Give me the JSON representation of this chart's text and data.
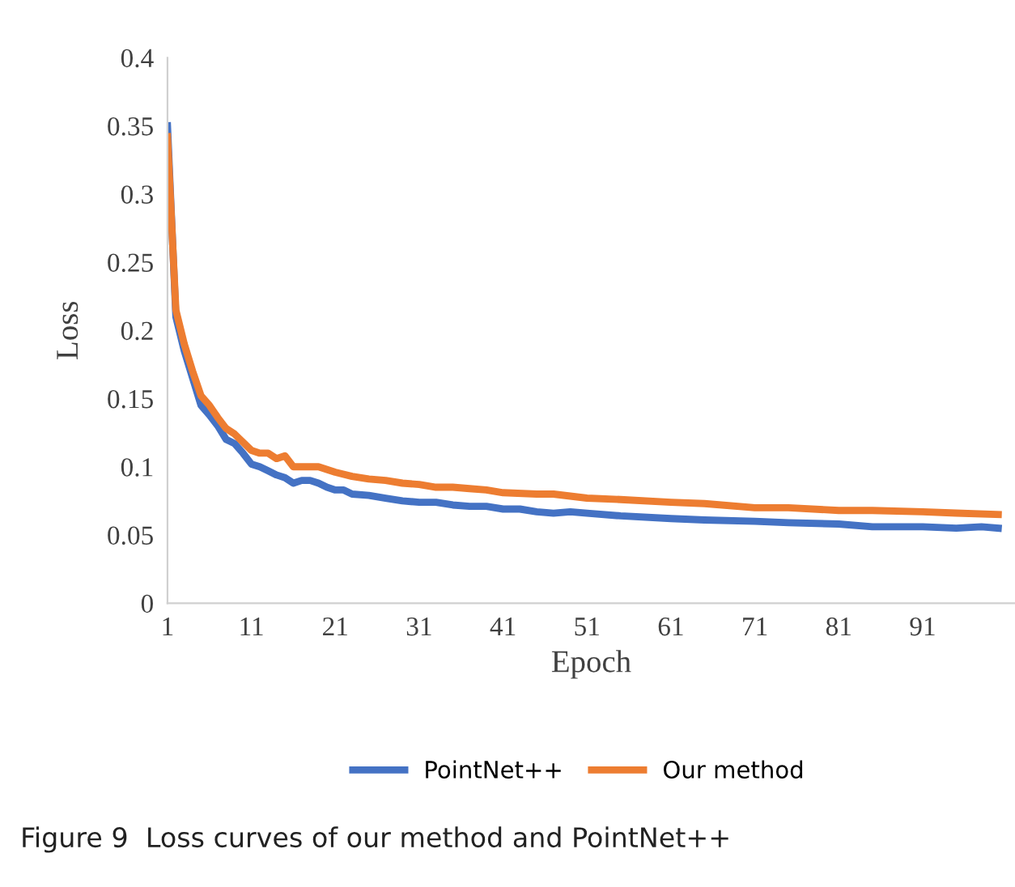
{
  "chart_data": {
    "type": "line",
    "xlabel": "Epoch",
    "ylabel": "Loss",
    "xlim": [
      1,
      102
    ],
    "xticks": [
      1,
      11,
      21,
      31,
      41,
      51,
      61,
      71,
      81,
      91
    ],
    "ylim": [
      0,
      0.4
    ],
    "yticks": [
      0,
      0.05,
      0.1,
      0.15,
      0.2,
      0.25,
      0.3,
      0.35,
      0.4
    ],
    "grid": false,
    "legend": "bottom",
    "marker": "none",
    "line_style": "solid",
    "annotations": [
      "Figure 9  Loss curves of our method and PointNet++"
    ],
    "series": [
      {
        "name": "PointNet++",
        "color": "#4472c4",
        "x": [
          1,
          2,
          3,
          4,
          5,
          6,
          7,
          8,
          9,
          10,
          11,
          12,
          13,
          14,
          15,
          16,
          17,
          18,
          19,
          20,
          21,
          22,
          23,
          25,
          27,
          29,
          31,
          33,
          35,
          37,
          39,
          41,
          43,
          45,
          47,
          49,
          51,
          55,
          61,
          65,
          71,
          75,
          81,
          85,
          91,
          95,
          98,
          100
        ],
        "values": [
          0.35,
          0.21,
          0.185,
          0.165,
          0.145,
          0.138,
          0.13,
          0.12,
          0.117,
          0.11,
          0.102,
          0.1,
          0.097,
          0.094,
          0.092,
          0.088,
          0.09,
          0.09,
          0.088,
          0.085,
          0.083,
          0.083,
          0.08,
          0.079,
          0.077,
          0.075,
          0.074,
          0.074,
          0.072,
          0.071,
          0.071,
          0.069,
          0.069,
          0.067,
          0.066,
          0.067,
          0.066,
          0.064,
          0.062,
          0.061,
          0.06,
          0.059,
          0.058,
          0.056,
          0.056,
          0.055,
          0.056,
          0.055
        ]
      },
      {
        "name": "Our method",
        "color": "#ed7d31",
        "x": [
          1,
          2,
          3,
          4,
          5,
          6,
          7,
          8,
          9,
          10,
          11,
          12,
          13,
          14,
          15,
          16,
          17,
          19,
          21,
          23,
          25,
          27,
          29,
          31,
          33,
          35,
          37,
          39,
          41,
          45,
          47,
          51,
          55,
          61,
          65,
          71,
          75,
          81,
          85,
          91,
          95,
          100
        ],
        "values": [
          0.342,
          0.215,
          0.19,
          0.17,
          0.152,
          0.145,
          0.136,
          0.128,
          0.124,
          0.118,
          0.112,
          0.11,
          0.11,
          0.106,
          0.108,
          0.1,
          0.1,
          0.1,
          0.096,
          0.093,
          0.091,
          0.09,
          0.088,
          0.087,
          0.085,
          0.085,
          0.084,
          0.083,
          0.081,
          0.08,
          0.08,
          0.077,
          0.076,
          0.074,
          0.073,
          0.07,
          0.07,
          0.068,
          0.068,
          0.067,
          0.066,
          0.065
        ]
      }
    ]
  }
}
